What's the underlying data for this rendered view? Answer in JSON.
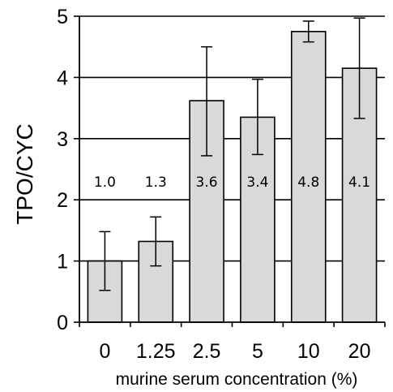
{
  "chart_data": {
    "type": "bar",
    "categories": [
      "0",
      "1.25",
      "2.5",
      "5",
      "10",
      "20"
    ],
    "values": [
      1.0,
      1.32,
      3.62,
      3.35,
      4.75,
      4.15
    ],
    "error_high": [
      1.48,
      1.72,
      4.5,
      3.97,
      4.92,
      4.97
    ],
    "error_low": [
      0.52,
      0.92,
      2.72,
      2.74,
      4.58,
      3.33
    ],
    "data_labels": [
      "1.0",
      "1.3",
      "3.6",
      "3.4",
      "4.8",
      "4.1"
    ],
    "title": "",
    "xlabel": "murine serum concentration (%)",
    "ylabel": "TPO/CYC",
    "ylim": [
      0,
      5
    ],
    "yticks": [
      "0",
      "1",
      "2",
      "3",
      "4",
      "5"
    ],
    "grid": true,
    "colors": {
      "bar_fill": "#d9d9d9",
      "bar_stroke": "#000000",
      "grid": "#000000",
      "axis": "#000000",
      "text": "#000000"
    }
  }
}
